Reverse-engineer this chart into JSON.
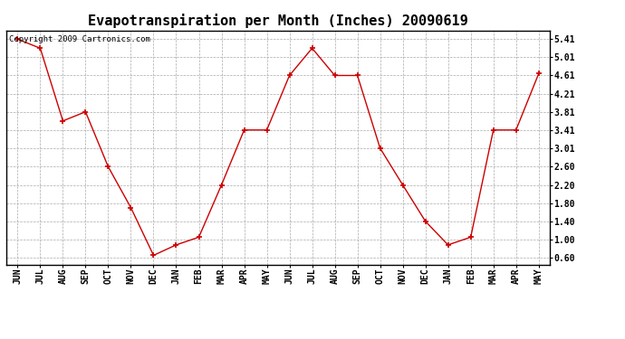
{
  "title": "Evapotranspiration per Month (Inches) 20090619",
  "copyright_text": "Copyright 2009 Cartronics.com",
  "months": [
    "JUN",
    "JUL",
    "AUG",
    "SEP",
    "OCT",
    "NOV",
    "DEC",
    "JAN",
    "FEB",
    "MAR",
    "APR",
    "MAY",
    "JUN",
    "JUL",
    "AUG",
    "SEP",
    "OCT",
    "NOV",
    "DEC",
    "JAN",
    "FEB",
    "MAR",
    "APR",
    "MAY"
  ],
  "values": [
    5.41,
    5.21,
    3.61,
    3.81,
    2.6,
    1.7,
    0.65,
    0.88,
    1.05,
    2.2,
    3.41,
    3.41,
    4.61,
    5.21,
    4.61,
    4.61,
    3.01,
    2.2,
    1.4,
    0.88,
    1.05,
    3.41,
    3.41,
    4.65
  ],
  "line_color": "#cc0000",
  "marker": "+",
  "marker_size": 5,
  "bg_color": "#ffffff",
  "grid_color": "#aaaaaa",
  "ytick_labels": [
    "0.60",
    "1.00",
    "1.40",
    "1.80",
    "2.20",
    "2.60",
    "3.01",
    "3.41",
    "3.81",
    "4.21",
    "4.61",
    "5.01",
    "5.41"
  ],
  "ytick_values": [
    0.6,
    1.0,
    1.4,
    1.8,
    2.2,
    2.6,
    3.01,
    3.41,
    3.81,
    4.21,
    4.61,
    5.01,
    5.41
  ],
  "ylim": [
    0.45,
    5.6
  ],
  "title_fontsize": 11,
  "tick_fontsize": 7,
  "copyright_fontsize": 6.5
}
